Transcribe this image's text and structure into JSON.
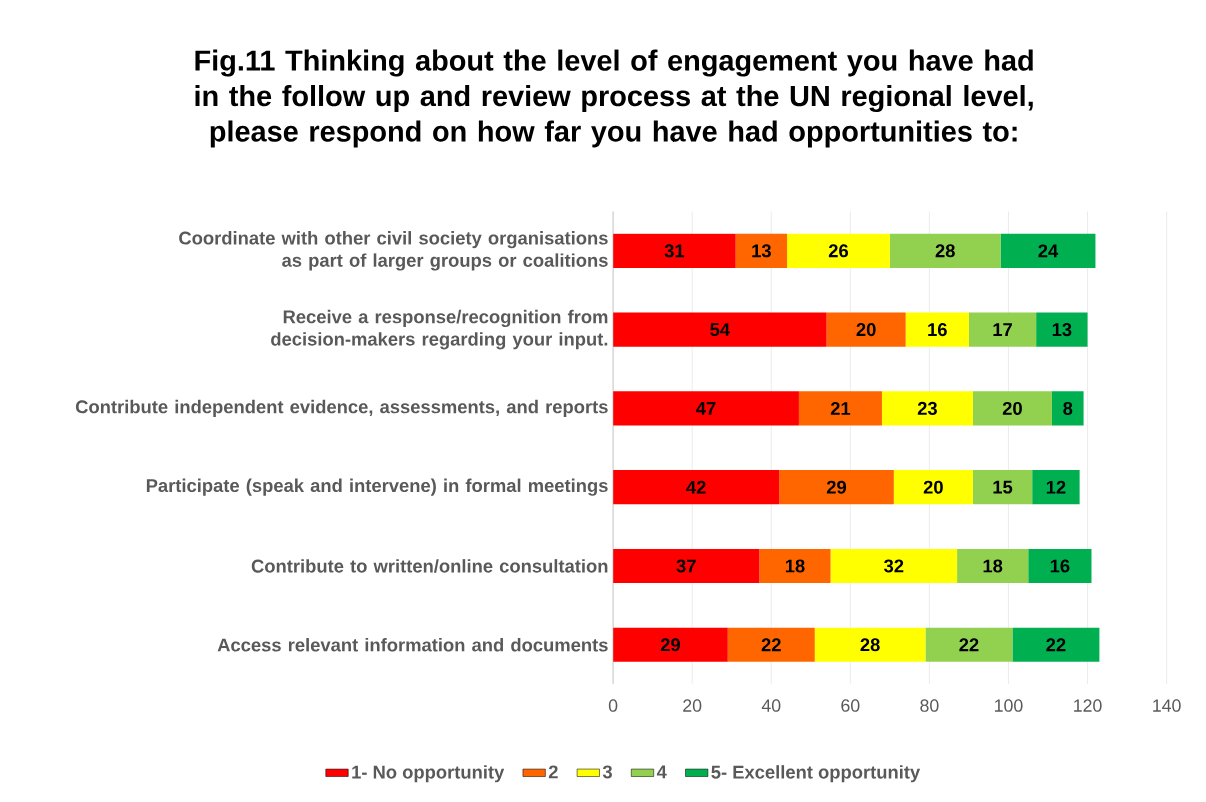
{
  "chart_data": {
    "type": "bar",
    "orientation": "horizontal",
    "stacked": true,
    "title": "Fig.11 Thinking about the level of engagement you have had in the follow up and review process at the UN regional level, please respond on how far you have had opportunities to:",
    "categories": [
      "Coordinate with other civil society organisations as part of larger groups or coalitions",
      "Receive a response/recognition from decision-makers regarding your input.",
      "Contribute independent evidence, assessments, and reports",
      "Participate (speak and intervene) in formal meetings",
      "Contribute to written/online consultation",
      "Access relevant information and documents"
    ],
    "series": [
      {
        "name": "1- No opportunity",
        "color": "#ff0000",
        "values": [
          31,
          54,
          47,
          42,
          37,
          29
        ]
      },
      {
        "name": "2",
        "color": "#ff6600",
        "values": [
          13,
          20,
          21,
          29,
          18,
          22
        ]
      },
      {
        "name": "3",
        "color": "#ffff00",
        "values": [
          26,
          16,
          23,
          20,
          32,
          28
        ]
      },
      {
        "name": "4",
        "color": "#92d050",
        "values": [
          28,
          17,
          20,
          15,
          18,
          22
        ]
      },
      {
        "name": "5- Excellent opportunity",
        "color": "#00b050",
        "values": [
          24,
          13,
          8,
          12,
          16,
          22
        ]
      }
    ],
    "xlim": [
      0,
      140
    ],
    "xticks": [
      0,
      20,
      40,
      60,
      80,
      100,
      120,
      140
    ],
    "data_labels": true,
    "grid": "x",
    "legend": "bottom"
  }
}
